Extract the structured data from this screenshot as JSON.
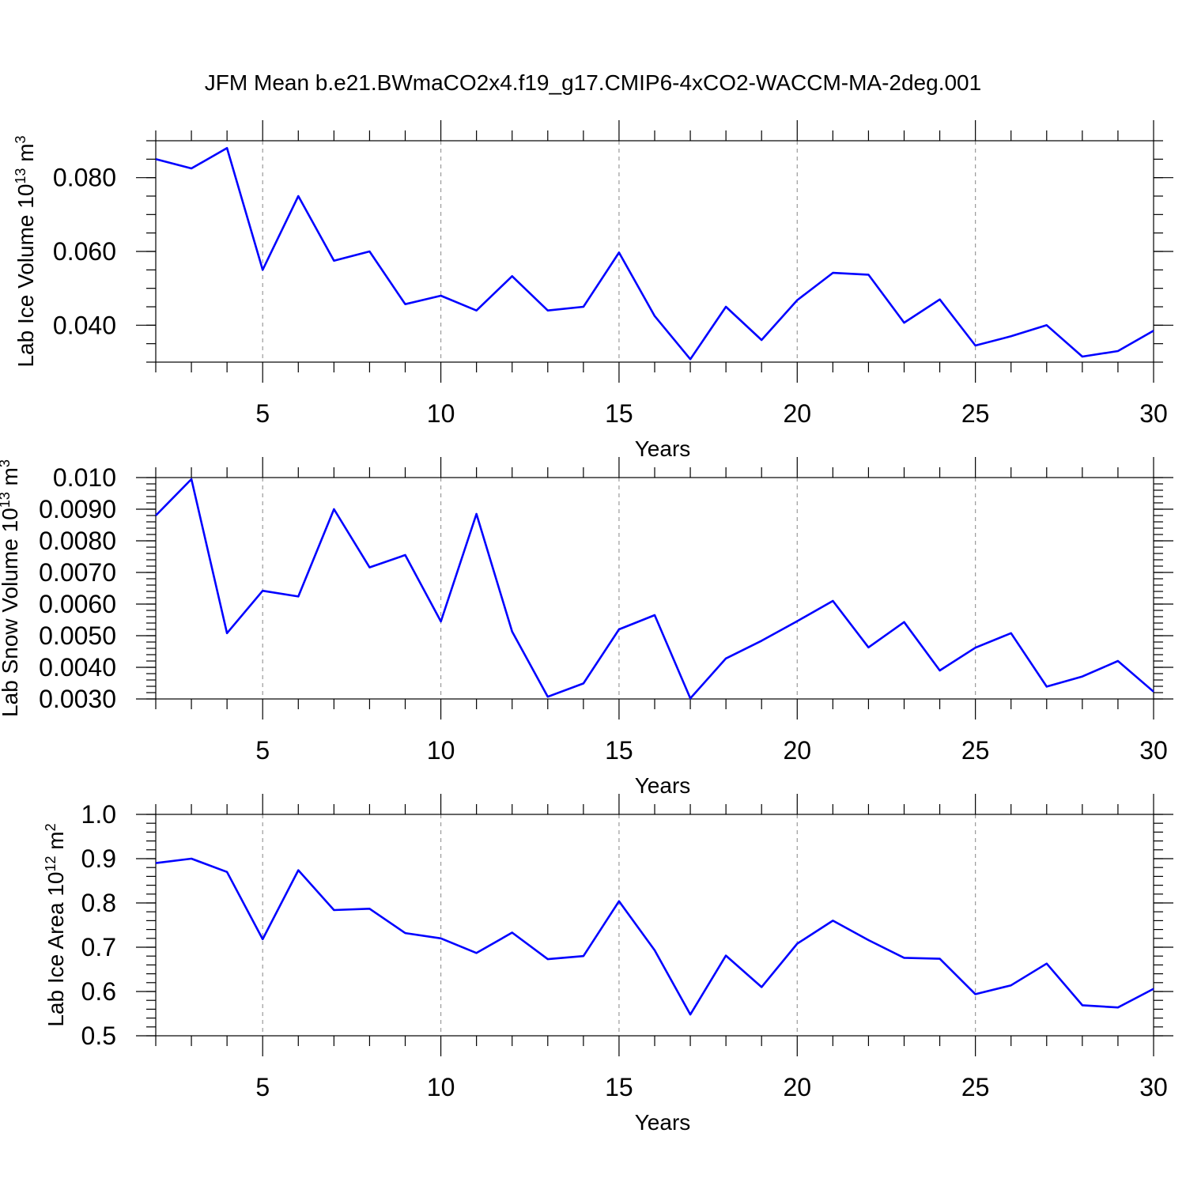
{
  "title": "JFM Mean b.e21.BWmaCO2x4.f19_g17.CMIP6-4xCO2-WACCM-MA-2deg.001",
  "line_color": "#0000ff",
  "chart_data": [
    {
      "type": "line",
      "ylabel": "Lab Ice Volume 10",
      "ylabel_exp": "13",
      "ylabel_unit": "m",
      "ylabel_unit_exp": "3",
      "xlabel": "Years",
      "xlim": [
        2,
        30
      ],
      "ylim": [
        0.03,
        0.09
      ],
      "x_ticks": [
        5,
        10,
        15,
        20,
        25,
        30
      ],
      "x_tick_labels": [
        "5",
        "10",
        "15",
        "20",
        "25",
        "30"
      ],
      "y_ticks": [
        0.04,
        0.06,
        0.08
      ],
      "y_tick_labels": [
        "0.040",
        "0.060",
        "0.080"
      ],
      "y_minor_step": 0.005,
      "grid": "vertical dashed at major x ticks",
      "x": [
        2,
        3,
        4,
        5,
        6,
        7,
        8,
        9,
        10,
        11,
        12,
        13,
        14,
        15,
        16,
        17,
        18,
        19,
        20,
        21,
        22,
        23,
        24,
        25,
        26,
        27,
        28,
        29,
        30
      ],
      "values": [
        0.085,
        0.0825,
        0.088,
        0.055,
        0.075,
        0.0575,
        0.06,
        0.0457,
        0.048,
        0.044,
        0.0533,
        0.044,
        0.045,
        0.0597,
        0.0425,
        0.0308,
        0.045,
        0.036,
        0.0468,
        0.0542,
        0.0537,
        0.0407,
        0.047,
        0.0345,
        0.037,
        0.04,
        0.0315,
        0.033,
        0.0385
      ]
    },
    {
      "type": "line",
      "ylabel": "Lab Snow Volume 10",
      "ylabel_exp": "13",
      "ylabel_unit": "m",
      "ylabel_unit_exp": "3",
      "xlabel": "Years",
      "xlim": [
        2,
        30
      ],
      "ylim": [
        0.003,
        0.01
      ],
      "x_ticks": [
        5,
        10,
        15,
        20,
        25,
        30
      ],
      "x_tick_labels": [
        "5",
        "10",
        "15",
        "20",
        "25",
        "30"
      ],
      "y_ticks": [
        0.003,
        0.004,
        0.005,
        0.006,
        0.007,
        0.008,
        0.009,
        0.01
      ],
      "y_tick_labels": [
        "0.0030",
        "0.0040",
        "0.0050",
        "0.0060",
        "0.0070",
        "0.0080",
        "0.0090",
        "0.010"
      ],
      "y_minor_step": 0.0002,
      "grid": "vertical dashed at major x ticks",
      "x": [
        2,
        3,
        4,
        5,
        6,
        7,
        8,
        9,
        10,
        11,
        12,
        13,
        14,
        15,
        16,
        17,
        18,
        19,
        20,
        21,
        22,
        23,
        24,
        25,
        26,
        27,
        28,
        29,
        30
      ],
      "values": [
        0.0088,
        0.00995,
        0.00508,
        0.00642,
        0.00624,
        0.009,
        0.00716,
        0.00755,
        0.00545,
        0.00885,
        0.00513,
        0.00307,
        0.00349,
        0.0052,
        0.00565,
        0.00302,
        0.00428,
        0.00484,
        0.00546,
        0.0061,
        0.00463,
        0.00543,
        0.0039,
        0.00462,
        0.00508,
        0.00339,
        0.00371,
        0.0042,
        0.00323
      ]
    },
    {
      "type": "line",
      "ylabel": "Lab Ice Area 10",
      "ylabel_exp": "12",
      "ylabel_unit": "m",
      "ylabel_unit_exp": "2",
      "xlabel": "Years",
      "xlim": [
        2,
        30
      ],
      "ylim": [
        0.5,
        1.0
      ],
      "x_ticks": [
        5,
        10,
        15,
        20,
        25,
        30
      ],
      "x_tick_labels": [
        "5",
        "10",
        "15",
        "20",
        "25",
        "30"
      ],
      "y_ticks": [
        0.5,
        0.6,
        0.7,
        0.8,
        0.9,
        1.0
      ],
      "y_tick_labels": [
        "0.5",
        "0.6",
        "0.7",
        "0.8",
        "0.9",
        "1.0"
      ],
      "y_minor_step": 0.02,
      "grid": "vertical dashed at major x ticks",
      "x": [
        2,
        3,
        4,
        5,
        6,
        7,
        8,
        9,
        10,
        11,
        12,
        13,
        14,
        15,
        16,
        17,
        18,
        19,
        20,
        21,
        22,
        23,
        24,
        25,
        26,
        27,
        28,
        29,
        30
      ],
      "values": [
        0.89,
        0.9,
        0.87,
        0.718,
        0.874,
        0.784,
        0.787,
        0.732,
        0.72,
        0.687,
        0.733,
        0.673,
        0.68,
        0.804,
        0.693,
        0.548,
        0.681,
        0.61,
        0.708,
        0.76,
        0.716,
        0.676,
        0.674,
        0.594,
        0.614,
        0.663,
        0.569,
        0.564,
        0.606
      ]
    }
  ]
}
